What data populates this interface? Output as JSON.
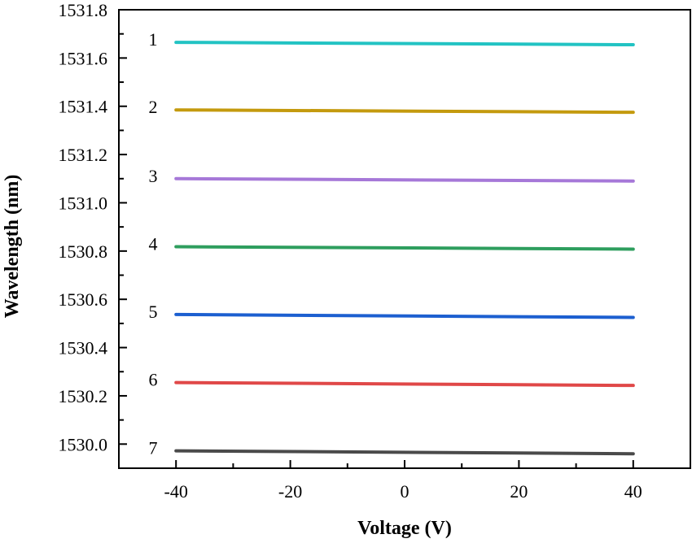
{
  "chart_data": {
    "type": "line",
    "title": "",
    "xlabel": "Voltage (V)",
    "ylabel": "Wavelength (nm)",
    "xlim": [
      -50,
      50
    ],
    "ylim": [
      1529.9,
      1531.8
    ],
    "x_ticks": [
      -40,
      -20,
      0,
      20,
      40
    ],
    "x_tick_labels": [
      "-40",
      "-20",
      "0",
      "20",
      "40"
    ],
    "y_ticks": [
      1530.0,
      1530.2,
      1530.4,
      1530.6,
      1530.8,
      1531.0,
      1531.2,
      1531.4,
      1531.6,
      1531.8
    ],
    "y_tick_labels": [
      "1530.0",
      "1530.2",
      "1530.4",
      "1530.6",
      "1530.8",
      "1531.0",
      "1531.2",
      "1531.4",
      "1531.6",
      "1531.8"
    ],
    "grid": false,
    "series": [
      {
        "label": "1",
        "color": "#22c3c3",
        "x": [
          -40,
          40
        ],
        "y": [
          1531.665,
          1531.655
        ]
      },
      {
        "label": "2",
        "color": "#c49a0e",
        "x": [
          -40,
          40
        ],
        "y": [
          1531.385,
          1531.375
        ]
      },
      {
        "label": "3",
        "color": "#a678d8",
        "x": [
          -40,
          40
        ],
        "y": [
          1531.1,
          1531.09
        ]
      },
      {
        "label": "4",
        "color": "#2e9e5e",
        "x": [
          -40,
          40
        ],
        "y": [
          1530.818,
          1530.808
        ]
      },
      {
        "label": "5",
        "color": "#1c5fd0",
        "x": [
          -40,
          40
        ],
        "y": [
          1530.537,
          1530.525
        ]
      },
      {
        "label": "6",
        "color": "#e04848",
        "x": [
          -40,
          40
        ],
        "y": [
          1530.255,
          1530.243
        ]
      },
      {
        "label": "7",
        "color": "#4a4a4a",
        "x": [
          -40,
          40
        ],
        "y": [
          1529.972,
          1529.96
        ]
      }
    ]
  }
}
